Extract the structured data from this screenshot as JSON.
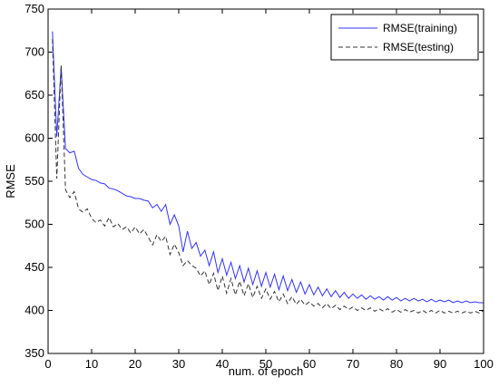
{
  "chart_data": {
    "type": "line",
    "xlabel": "num. of epoch",
    "ylabel": "RMSE",
    "xlim": [
      0,
      100
    ],
    "ylim": [
      350,
      750
    ],
    "xticks": [
      "0",
      "10",
      "20",
      "30",
      "40",
      "50",
      "60",
      "70",
      "80",
      "90",
      "100"
    ],
    "yticks": [
      "350",
      "400",
      "450",
      "500",
      "550",
      "600",
      "650",
      "700",
      "750"
    ],
    "grid": false,
    "legend_position": "top-right",
    "series": [
      {
        "name": "RMSE(training)",
        "color": "#3333ff",
        "style": "solid",
        "x": [
          1,
          2,
          3,
          4,
          5,
          6,
          7,
          8,
          9,
          10,
          11,
          12,
          13,
          14,
          15,
          16,
          17,
          18,
          19,
          20,
          21,
          22,
          23,
          24,
          25,
          26,
          27,
          28,
          29,
          30,
          31,
          32,
          33,
          34,
          35,
          36,
          37,
          38,
          39,
          40,
          41,
          42,
          43,
          44,
          45,
          46,
          47,
          48,
          49,
          50,
          51,
          52,
          53,
          54,
          55,
          56,
          57,
          58,
          59,
          60,
          61,
          62,
          63,
          64,
          65,
          66,
          67,
          68,
          69,
          70,
          71,
          72,
          73,
          74,
          75,
          76,
          77,
          78,
          79,
          80,
          81,
          82,
          83,
          84,
          85,
          86,
          87,
          88,
          89,
          90,
          91,
          92,
          93,
          94,
          95,
          96,
          97,
          98,
          99,
          100
        ],
        "values": [
          724,
          602,
          683,
          588,
          583,
          585,
          565,
          558,
          555,
          552,
          551,
          548,
          547,
          542,
          541,
          539,
          536,
          533,
          532,
          530,
          530,
          528,
          527,
          519,
          523,
          515,
          523,
          500,
          511,
          498,
          468,
          492,
          472,
          479,
          463,
          470,
          452,
          468,
          444,
          460,
          441,
          456,
          437,
          452,
          433,
          449,
          430,
          446,
          428,
          444,
          427,
          442,
          424,
          440,
          423,
          436,
          421,
          433,
          419,
          430,
          418,
          427,
          417,
          425,
          416,
          423,
          415,
          421,
          414,
          419,
          414,
          418,
          413,
          417,
          413,
          416,
          412,
          416,
          412,
          415,
          411,
          414,
          411,
          414,
          411,
          413,
          410,
          413,
          410,
          412,
          410,
          412,
          409,
          411,
          409,
          411,
          409,
          410,
          409,
          409
        ]
      },
      {
        "name": "RMSE(testing)",
        "color": "#333333",
        "style": "dashed",
        "x": [
          1,
          2,
          3,
          4,
          5,
          6,
          7,
          8,
          9,
          10,
          11,
          12,
          13,
          14,
          15,
          16,
          17,
          18,
          19,
          20,
          21,
          22,
          23,
          24,
          25,
          26,
          27,
          28,
          29,
          30,
          31,
          32,
          33,
          34,
          35,
          36,
          37,
          38,
          39,
          40,
          41,
          42,
          43,
          44,
          45,
          46,
          47,
          48,
          49,
          50,
          51,
          52,
          53,
          54,
          55,
          56,
          57,
          58,
          59,
          60,
          61,
          62,
          63,
          64,
          65,
          66,
          67,
          68,
          69,
          70,
          71,
          72,
          73,
          74,
          75,
          76,
          77,
          78,
          79,
          80,
          81,
          82,
          83,
          84,
          85,
          86,
          87,
          88,
          89,
          90,
          91,
          92,
          93,
          94,
          95,
          96,
          97,
          98,
          99,
          100
        ],
        "values": [
          715,
          553,
          685,
          540,
          531,
          538,
          518,
          514,
          518,
          507,
          502,
          505,
          498,
          508,
          497,
          501,
          494,
          497,
          490,
          497,
          489,
          494,
          485,
          476,
          488,
          480,
          486,
          465,
          477,
          467,
          452,
          458,
          452,
          449,
          440,
          446,
          430,
          443,
          423,
          440,
          420,
          437,
          418,
          434,
          417,
          431,
          415,
          428,
          414,
          425,
          413,
          422,
          410,
          419,
          408,
          416,
          407,
          413,
          406,
          410,
          405,
          408,
          403,
          408,
          402,
          406,
          401,
          405,
          401,
          404,
          400,
          403,
          400,
          403,
          399,
          402,
          399,
          402,
          398,
          401,
          398,
          401,
          398,
          400,
          397,
          400,
          397,
          400,
          397,
          400,
          397,
          399,
          397,
          399,
          397,
          399,
          397,
          399,
          397,
          400
        ]
      }
    ]
  }
}
